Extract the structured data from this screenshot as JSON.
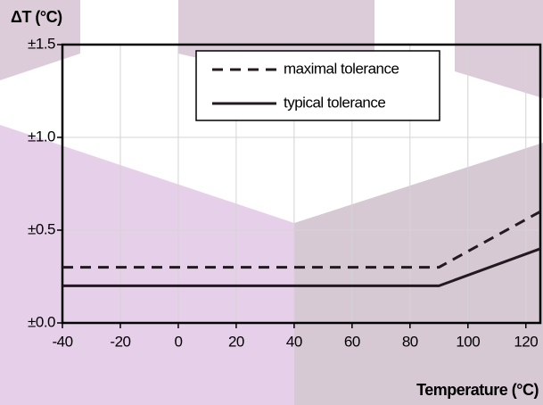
{
  "chart_data": {
    "type": "line",
    "y_label": "ΔT (°C)",
    "x_label": "Temperature (°C)",
    "x": [
      -40,
      90,
      125
    ],
    "series": [
      {
        "name": "maximal tolerance",
        "color": "#231a20",
        "dash": "dashed",
        "values": [
          0.3,
          0.3,
          0.6
        ]
      },
      {
        "name": "typical tolerance",
        "color": "#231a20",
        "dash": "solid",
        "values": [
          0.2,
          0.2,
          0.4
        ]
      }
    ],
    "xlim": [
      -40,
      125
    ],
    "xticks": [
      -40,
      -20,
      0,
      20,
      40,
      60,
      80,
      100,
      120
    ],
    "ylim": [
      0,
      1.5
    ],
    "yticks": [
      {
        "value": 0,
        "label": "±0.0"
      },
      {
        "value": 0.5,
        "label": "±0.5"
      },
      {
        "value": 1.0,
        "label": "±1.0"
      },
      {
        "value": 1.5,
        "label": "±1.5"
      }
    ],
    "grid": true
  }
}
